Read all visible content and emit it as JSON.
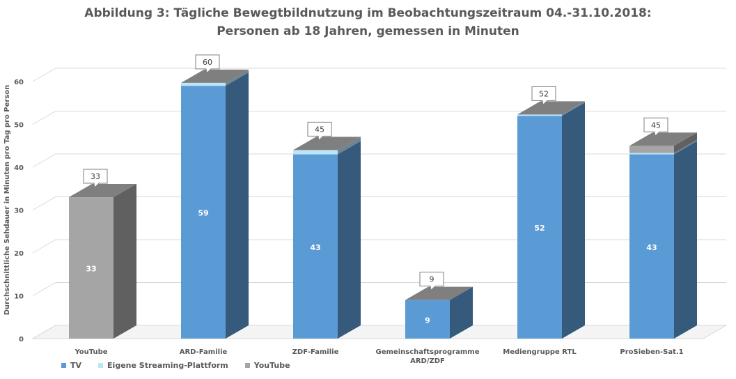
{
  "chart_data": {
    "type": "bar",
    "title_line1": "Abbildung 3: Tägliche Bewegtbildnutzung im Beobachtungszeitraum 04.-31.10.2018:",
    "title_line2": "Personen ab 18 Jahren, gemessen  in Minuten",
    "ylabel": "Durchschnittliche Sehdauer in Minuten pro Tag pro Person",
    "xlabel": "",
    "ylim": [
      0,
      60
    ],
    "yticks": [
      0,
      10,
      20,
      30,
      40,
      50,
      60
    ],
    "stacked": true,
    "grid": true,
    "categories": [
      "YouTube",
      "ARD-Familie",
      "ZDF-Familie",
      "Gemeinschaftsprogramme ARD/ZDF",
      "Mediengruppe RTL",
      "ProSieben-Sat.1"
    ],
    "category_labels": [
      [
        "YouTube"
      ],
      [
        "ARD-Familie"
      ],
      [
        "ZDF-Familie"
      ],
      [
        "Gemeinschaftsprogramme",
        "ARD/ZDF"
      ],
      [
        "Mediengruppe RTL"
      ],
      [
        "ProSieben-Sat.1"
      ]
    ],
    "series": [
      {
        "name": "TV",
        "color": "#5B9BD5",
        "values": [
          0,
          59,
          43,
          9,
          52,
          43
        ],
        "labels": [
          "",
          "59",
          "43",
          "9",
          "52",
          "43"
        ]
      },
      {
        "name": "Eigene Streaming-Plattform",
        "color": "#BDE5F8",
        "values": [
          0,
          0.7,
          1,
          0,
          0.3,
          0.3
        ],
        "labels": [
          "",
          "",
          "",
          "",
          "",
          ""
        ]
      },
      {
        "name": "YouTube",
        "color": "#A5A5A5",
        "values": [
          33,
          0,
          0,
          0,
          0,
          1.7
        ],
        "labels": [
          "33",
          "",
          "",
          "",
          "",
          ""
        ]
      }
    ],
    "totals": [
      "33",
      "60",
      "45",
      "9",
      "52",
      "45"
    ],
    "legend_position": "bottom-left"
  }
}
